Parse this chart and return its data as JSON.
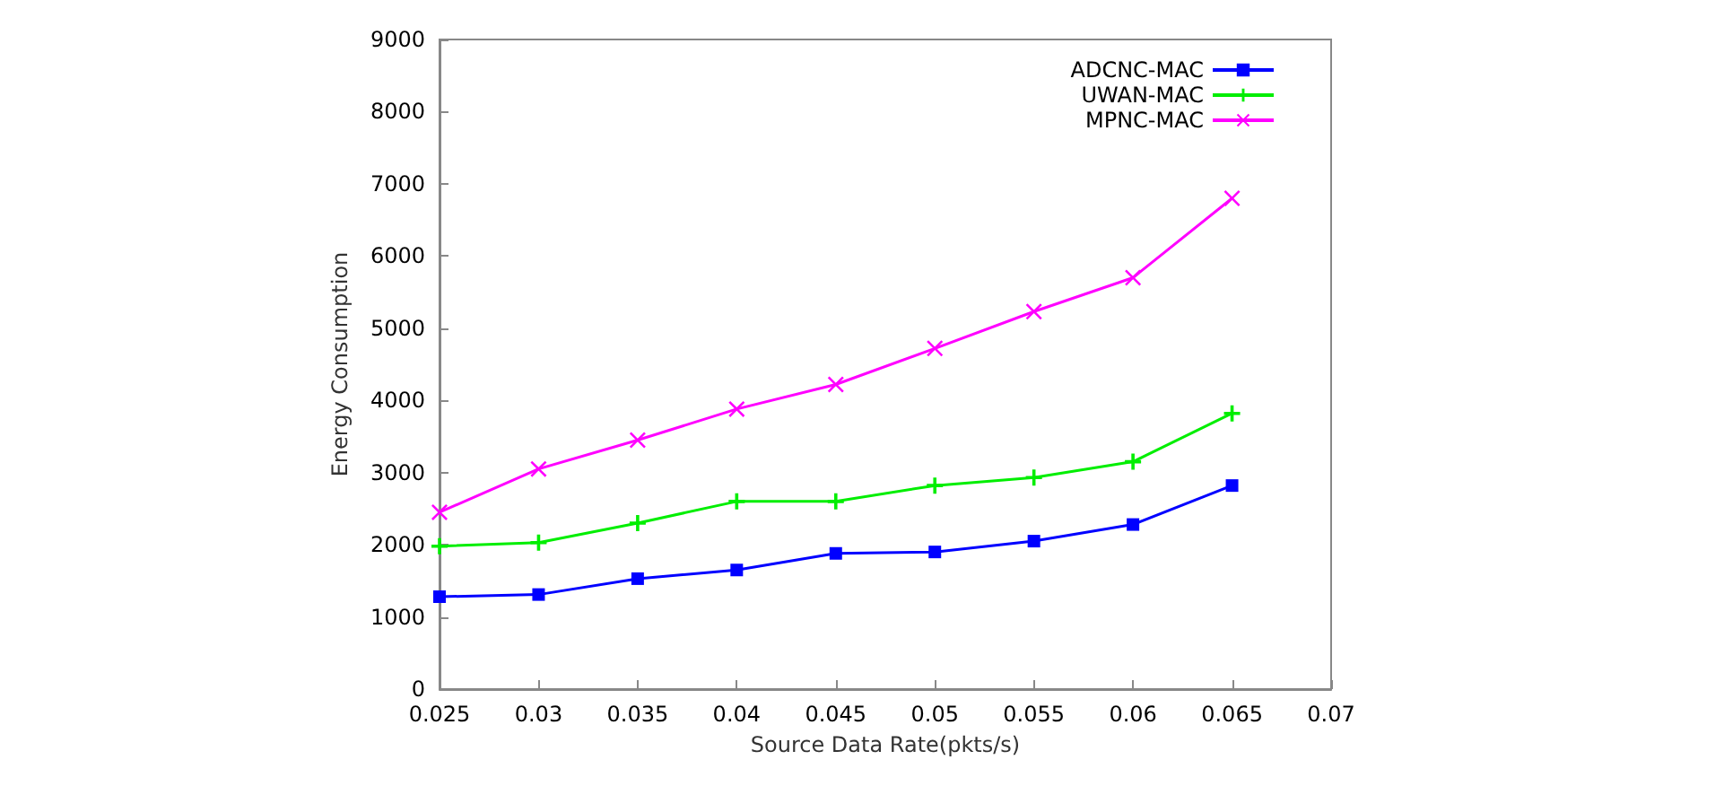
{
  "chart_data": {
    "type": "line",
    "xlabel": "Source Data Rate(pkts/s)",
    "ylabel": "Energy Consumption",
    "x": [
      0.025,
      0.03,
      0.035,
      0.04,
      0.045,
      0.05,
      0.055,
      0.06,
      0.065
    ],
    "xlim": [
      0.025,
      0.07
    ],
    "xticks": [
      0.025,
      0.03,
      0.035,
      0.04,
      0.045,
      0.05,
      0.055,
      0.06,
      0.065,
      0.07
    ],
    "ylim": [
      0,
      9000
    ],
    "yticks": [
      0,
      1000,
      2000,
      3000,
      4000,
      5000,
      6000,
      7000,
      8000,
      9000
    ],
    "grid": false,
    "legend": "top right",
    "line_style": "solid",
    "series": [
      {
        "name": "ADCNC-MAC",
        "color": "#0000ff",
        "marker": "square",
        "values": [
          1280,
          1310,
          1530,
          1650,
          1880,
          1900,
          2050,
          2280,
          2820
        ]
      },
      {
        "name": "UWAN-MAC",
        "color": "#00ee00",
        "marker": "cross",
        "values": [
          1980,
          2030,
          2300,
          2600,
          2600,
          2820,
          2930,
          3150,
          3820
        ]
      },
      {
        "name": "MPNC-MAC",
        "color": "#ff00ff",
        "marker": "cross",
        "values": [
          2450,
          3050,
          3450,
          3880,
          4220,
          4720,
          5230,
          5700,
          6800
        ]
      }
    ]
  }
}
